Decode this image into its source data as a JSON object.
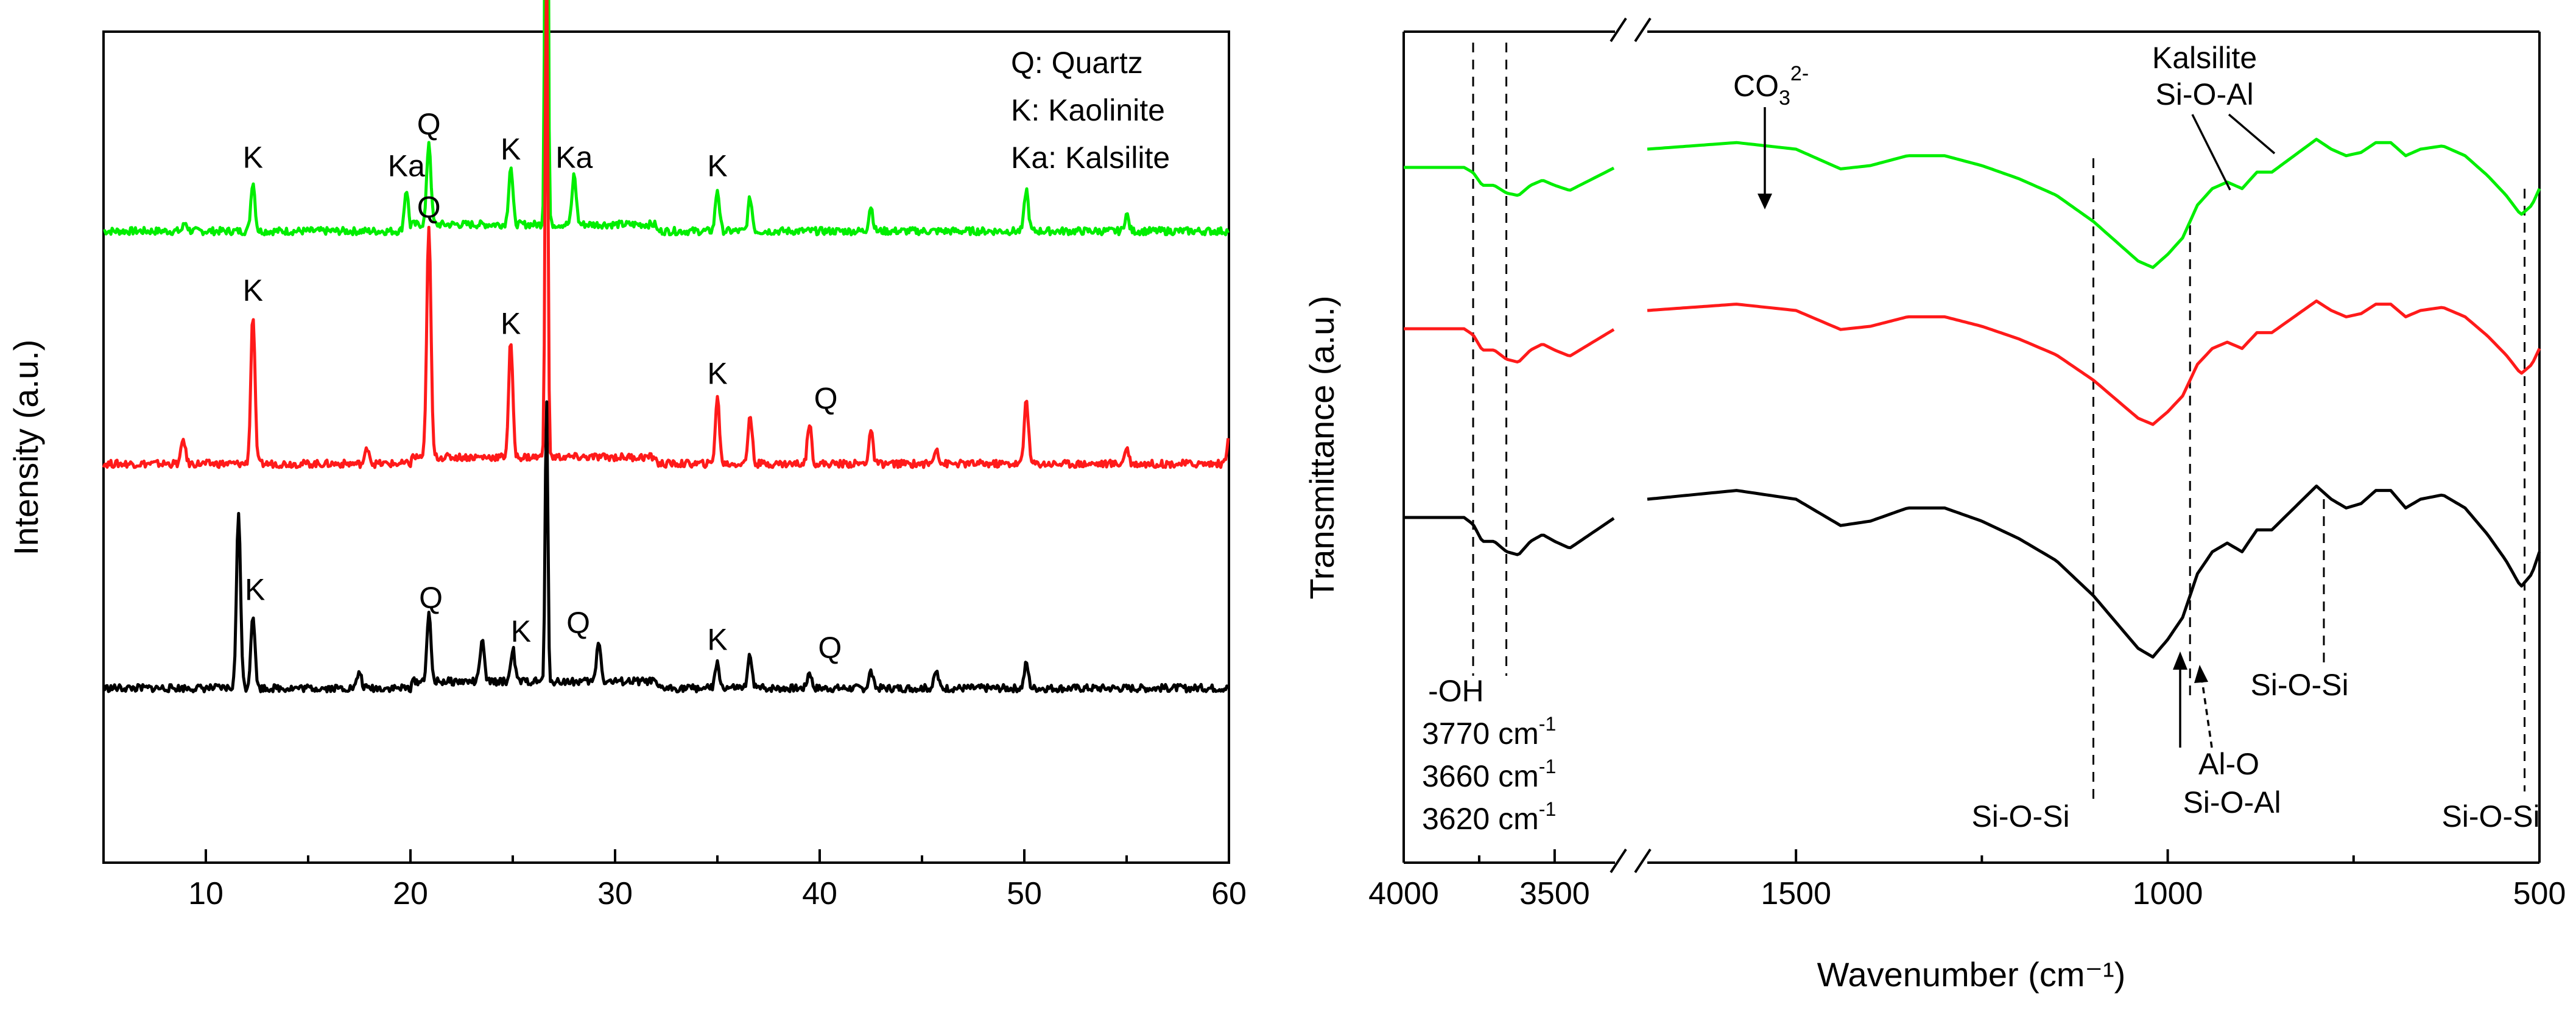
{
  "chart_data": [
    {
      "type": "line",
      "name": "XRD",
      "xlabel": "",
      "ylabel": "Intensity (a.u.)",
      "xlim": [
        5,
        60
      ],
      "xticks": [
        "10",
        "20",
        "30",
        "40",
        "50",
        "60"
      ],
      "legend": {
        "position": "top-right",
        "entries": [
          "Q: Quartz",
          "K: Kaolinite",
          "Ka: Kalsilite"
        ]
      },
      "series": [
        {
          "name": "green",
          "color": "#00ee00",
          "baseline": 0.24,
          "peaks": [
            [
              9.0,
              0.01
            ],
            [
              12.3,
              0.06
            ],
            [
              19.8,
              0.05
            ],
            [
              20.9,
              0.1
            ],
            [
              24.9,
              0.07
            ],
            [
              26.65,
              0.92
            ],
            [
              28.0,
              0.06
            ],
            [
              35.0,
              0.05
            ],
            [
              36.6,
              0.04
            ],
            [
              42.5,
              0.03
            ],
            [
              50.1,
              0.05
            ],
            [
              55.0,
              0.02
            ]
          ],
          "annotations": [
            {
              "text": "K",
              "x": 12.3
            },
            {
              "text": "Ka",
              "x": 19.8
            },
            {
              "text": "Q",
              "x": 20.9
            },
            {
              "text": "K",
              "x": 24.9
            },
            {
              "text": "Q",
              "x": 26.65
            },
            {
              "text": "Ka",
              "x": 28.0
            },
            {
              "text": "K",
              "x": 35.0
            }
          ]
        },
        {
          "name": "red",
          "color": "#ff1a1a",
          "baseline": 0.52,
          "peaks": [
            [
              8.9,
              0.03
            ],
            [
              12.3,
              0.18
            ],
            [
              17.9,
              0.02
            ],
            [
              20.9,
              0.28
            ],
            [
              24.9,
              0.14
            ],
            [
              26.65,
              0.62
            ],
            [
              35.0,
              0.08
            ],
            [
              36.6,
              0.06
            ],
            [
              39.5,
              0.05
            ],
            [
              42.5,
              0.04
            ],
            [
              45.7,
              0.02
            ],
            [
              50.1,
              0.08
            ],
            [
              55.0,
              0.02
            ],
            [
              60.0,
              0.03
            ]
          ],
          "annotations": [
            {
              "text": "K",
              "x": 12.3
            },
            {
              "text": "Q",
              "x": 20.9
            },
            {
              "text": "K",
              "x": 24.9
            },
            {
              "text": "Q",
              "x": 26.65
            },
            {
              "text": "K",
              "x": 35.0
            },
            {
              "text": "Q",
              "x": 40.3
            }
          ]
        },
        {
          "name": "black",
          "color": "#000000",
          "baseline": 0.79,
          "peaks": [
            [
              11.6,
              0.21
            ],
            [
              12.3,
              0.09
            ],
            [
              17.5,
              0.02
            ],
            [
              20.9,
              0.08
            ],
            [
              23.5,
              0.05
            ],
            [
              25.0,
              0.04
            ],
            [
              26.65,
              0.34
            ],
            [
              29.2,
              0.05
            ],
            [
              35.0,
              0.03
            ],
            [
              36.6,
              0.04
            ],
            [
              39.5,
              0.02
            ],
            [
              42.5,
              0.02
            ],
            [
              45.7,
              0.02
            ],
            [
              50.1,
              0.03
            ]
          ],
          "annotations": [
            {
              "text": "K",
              "x": 12.4
            },
            {
              "text": "Q",
              "x": 21.0
            },
            {
              "text": "K",
              "x": 25.4
            },
            {
              "text": "Q",
              "x": 28.2
            },
            {
              "text": "K",
              "x": 35.0
            },
            {
              "text": "Q",
              "x": 40.5
            }
          ]
        }
      ]
    },
    {
      "type": "line",
      "name": "FTIR",
      "xlabel": "Wavenumber (cm⁻¹)",
      "ylabel": "Transmittance (a.u.)",
      "xlim": [
        4000,
        500
      ],
      "axis_break": "between 3500 and 1500",
      "xticks": [
        "4000",
        "3500",
        "1500",
        "1000",
        "500"
      ],
      "vlines": [
        3770,
        3660,
        1100,
        970,
        520,
        790
      ],
      "series": [
        {
          "name": "green",
          "color": "#00ee00"
        },
        {
          "name": "red",
          "color": "#ff1a1a"
        },
        {
          "name": "black",
          "color": "#000000"
        }
      ],
      "annotations": {
        "carbonate": "CO",
        "carbonate_sub": "3",
        "carbonate_sup": "2-",
        "kalsilite_title": "Kalsilite",
        "kalsilite_bond": "Si-O-Al",
        "oh_label": "-OH",
        "wn1": "3770 cm",
        "wn2": "3660 cm",
        "wn3": "3620 cm",
        "unit_sup": "-1",
        "sios_1": "Si-O-Si",
        "alo": "Al-O",
        "sioal": "Si-O-Al",
        "sios_2": "Si-O-Si",
        "sios_3": "Si-O-Si"
      }
    }
  ]
}
